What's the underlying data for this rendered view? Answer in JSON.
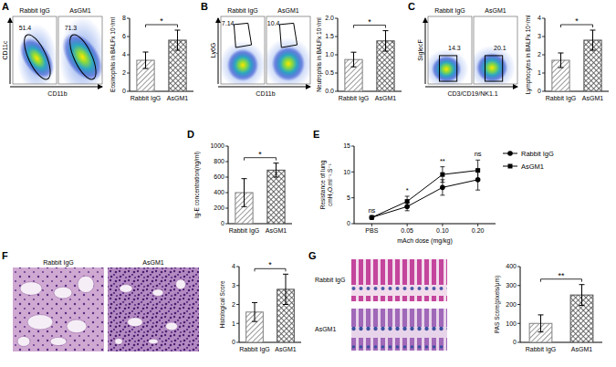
{
  "chart_data": [
    {
      "type": "flow",
      "panel": "A",
      "x_label": "CD11b",
      "y_label": "CD11c",
      "groups": [
        "Rabbit IgG",
        "AsGM1"
      ],
      "gate_values": [
        51.4,
        71.3
      ]
    },
    {
      "type": "bar",
      "ylabel": "Eosinophils in BALFx 10⁴/ml",
      "categories": [
        "Rabbit IgG",
        "AsGM1"
      ],
      "values": [
        3.4,
        5.6
      ],
      "errors": [
        0.9,
        1.1
      ],
      "colors": [
        "#7f7f7f",
        "#4d4d4d"
      ],
      "ylim": [
        0,
        8
      ],
      "yticks": [
        0,
        2,
        4,
        6,
        8
      ],
      "annotations": [
        "*"
      ]
    },
    {
      "type": "flow",
      "panel": "B",
      "x_label": "CD11b",
      "y_label": "Ly6G",
      "groups": [
        "Rabbit IgG",
        "AsGM1"
      ],
      "gate_values": [
        7.14,
        10.4
      ]
    },
    {
      "type": "bar",
      "ylabel": "Neutrophils in BALFx 10⁴/ml",
      "categories": [
        "Rabbit IgG",
        "AsGM1"
      ],
      "values": [
        0.87,
        1.38
      ],
      "errors": [
        0.2,
        0.28
      ],
      "colors": [
        "#7f7f7f",
        "#4d4d4d"
      ],
      "ylim": [
        0,
        2
      ],
      "yticks": [
        {
          "value": 0,
          "label": "0.0"
        },
        0.5,
        {
          "value": 1,
          "label": "1.0"
        },
        1.5,
        {
          "value": 2,
          "label": "2.0"
        }
      ],
      "annotations": [
        "*"
      ]
    },
    {
      "type": "flow",
      "panel": "C",
      "x_label": "CD3/CD19/NK1.1",
      "y_label": "SiglecF",
      "groups": [
        "Rabbit IgG",
        "AsGM1"
      ],
      "gate_values": [
        14.3,
        20.1
      ]
    },
    {
      "type": "bar",
      "ylabel": "Lymphocytes in BALFx 10⁴/ml",
      "categories": [
        "Rabbit IgG",
        "AsGM1"
      ],
      "values": [
        1.7,
        2.8
      ],
      "errors": [
        0.4,
        0.55
      ],
      "colors": [
        "#7f7f7f",
        "#4d4d4d"
      ],
      "ylim": [
        0,
        4
      ],
      "yticks": [
        0,
        1,
        2,
        3,
        4
      ],
      "annotations": [
        "*"
      ]
    },
    {
      "type": "bar",
      "panel": "D",
      "ylabel": "Ig-E concentration(ng/ml)",
      "categories": [
        "Rabbit IgG",
        "AsGM1"
      ],
      "values": [
        400,
        690
      ],
      "errors": [
        180,
        90
      ],
      "colors": [
        "#7f7f7f",
        "#4d4d4d"
      ],
      "ylim": [
        0,
        1000
      ],
      "yticks": [
        0,
        200,
        400,
        600,
        800,
        1000
      ],
      "annotations": [
        "*"
      ]
    },
    {
      "type": "line",
      "panel": "E",
      "xlabel": "mAch dose (mg/kg)",
      "ylabel": [
        "Resistance of lung",
        "cmH₂O.ml⁻¹.S⁻¹"
      ],
      "categories": [
        "PBS",
        "0.05",
        "0.10",
        "0.20"
      ],
      "series": [
        {
          "name": "Rabbit IgG",
          "color": "#000000",
          "marker": "circle",
          "values": [
            1.2,
            3.3,
            7.0,
            8.5
          ],
          "errors": [
            0.2,
            0.8,
            1.5,
            2.0
          ]
        },
        {
          "name": "AsGM1",
          "color": "#000000",
          "marker": "square",
          "values": [
            1.2,
            4.3,
            9.5,
            10.3
          ],
          "errors": [
            0.2,
            1.0,
            1.5,
            2.0
          ]
        }
      ],
      "ylim": [
        0,
        15
      ],
      "yticks": [
        0,
        5,
        10,
        15
      ],
      "annotations": [
        "ns",
        "*",
        "**",
        "ns"
      ],
      "legend": "right"
    },
    {
      "type": "micrograph",
      "panel": "F",
      "labels": [
        "Rabbit IgG",
        "AsGM1"
      ]
    },
    {
      "type": "bar",
      "ylabel": "Histological Score",
      "categories": [
        "Rabbit IgG",
        "AsGM1"
      ],
      "values": [
        1.6,
        2.8
      ],
      "errors": [
        0.5,
        0.8
      ],
      "colors": [
        "#7f7f7f",
        "#4d4d4d"
      ],
      "ylim": [
        0,
        4
      ],
      "yticks": [
        0,
        1,
        2,
        3,
        4
      ],
      "annotations": [
        "*"
      ]
    },
    {
      "type": "micrograph",
      "panel": "G",
      "labels": [
        "Rabbit IgG",
        "AsGM1"
      ]
    },
    {
      "type": "bar",
      "ylabel": "PAS Score(pixels/μm)",
      "categories": [
        "Rabbit IgG",
        "AsGM1"
      ],
      "values": [
        100,
        250
      ],
      "errors": [
        45,
        55
      ],
      "colors": [
        "#7f7f7f",
        "#4d4d4d"
      ],
      "ylim": [
        0,
        400
      ],
      "yticks": [
        0,
        100,
        200,
        300,
        400
      ],
      "annotations": [
        "**"
      ]
    }
  ]
}
